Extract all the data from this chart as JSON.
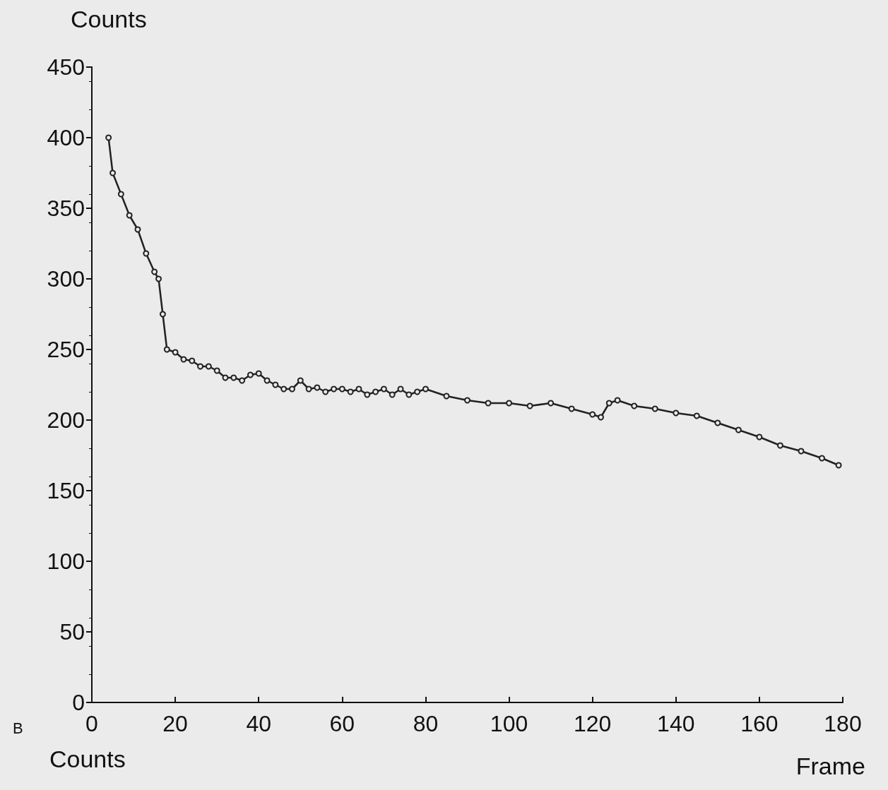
{
  "chart_data": {
    "type": "line",
    "xlabel": "Frame",
    "ylabel": "Counts",
    "annotations": [
      "B",
      "Counts"
    ],
    "x": [
      4,
      5,
      7,
      9,
      11,
      13,
      15,
      16,
      17,
      18,
      20,
      22,
      24,
      26,
      28,
      30,
      32,
      34,
      36,
      38,
      40,
      42,
      44,
      46,
      48,
      50,
      52,
      54,
      56,
      58,
      60,
      62,
      64,
      66,
      68,
      70,
      72,
      74,
      76,
      78,
      80,
      85,
      90,
      95,
      100,
      105,
      110,
      115,
      120,
      122,
      124,
      126,
      130,
      135,
      140,
      145,
      150,
      155,
      160,
      165,
      170,
      175,
      179
    ],
    "series": [
      {
        "color": "#222222",
        "values": [
          400,
          375,
          360,
          345,
          335,
          318,
          305,
          300,
          275,
          250,
          248,
          243,
          242,
          238,
          238,
          235,
          230,
          230,
          228,
          232,
          233,
          228,
          225,
          222,
          222,
          228,
          222,
          223,
          220,
          222,
          222,
          220,
          222,
          218,
          220,
          222,
          218,
          222,
          218,
          220,
          222,
          217,
          214,
          212,
          212,
          210,
          212,
          208,
          204,
          202,
          212,
          214,
          210,
          208,
          205,
          203,
          198,
          193,
          188,
          182,
          178,
          173,
          168
        ]
      }
    ],
    "xlim": [
      0,
      180
    ],
    "xticks": [
      0,
      20,
      40,
      60,
      80,
      100,
      120,
      140,
      160,
      180
    ],
    "ylim": [
      0,
      450
    ],
    "yticks": [
      0,
      50,
      100,
      150,
      200,
      250,
      300,
      350,
      400,
      450
    ],
    "grid": false,
    "marker": "circle",
    "line_style": "solid"
  }
}
